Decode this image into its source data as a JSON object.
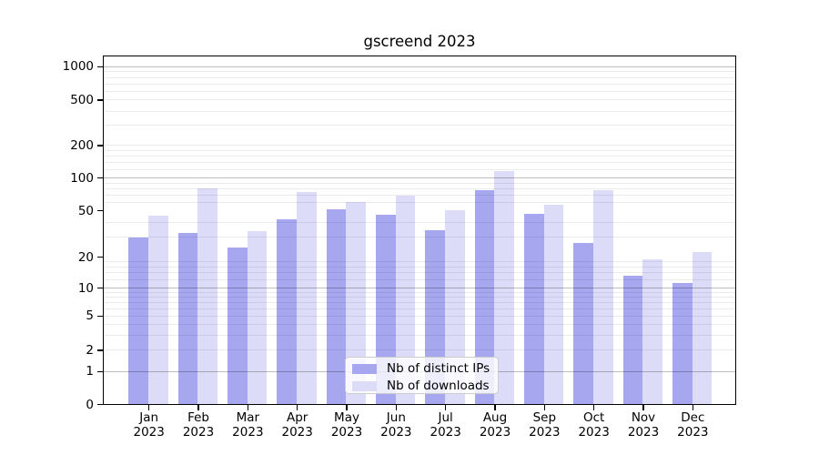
{
  "title": "gscreend 2023",
  "chart_data": {
    "type": "bar",
    "title": "gscreend 2023",
    "categories": [
      "Jan",
      "Feb",
      "Mar",
      "Apr",
      "May",
      "Jun",
      "Jul",
      "Aug",
      "Sep",
      "Oct",
      "Nov",
      "Dec"
    ],
    "x_tick_second_line": "2023",
    "series": [
      {
        "name": "Nb of distinct IPs",
        "color": "#a7a7f0",
        "values": [
          29,
          32,
          24,
          42,
          51,
          46,
          34,
          76,
          47,
          26,
          13,
          11
        ]
      },
      {
        "name": "Nb of downloads",
        "color": "#dcdcf8",
        "values": [
          45,
          80,
          33,
          74,
          60,
          68,
          50,
          114,
          56,
          76,
          19,
          22
        ]
      }
    ],
    "y_axis": {
      "scale": "symlog",
      "major_ticks": [
        0,
        1,
        2,
        5,
        10,
        20,
        50,
        100,
        200,
        500,
        1000
      ],
      "power_of_ten_gridlines": [
        1,
        10,
        100,
        1000
      ],
      "minor_gridlines": [
        2,
        3,
        4,
        5,
        6,
        7,
        8,
        9,
        12,
        14,
        16,
        18,
        30,
        40,
        60,
        70,
        80,
        90,
        120,
        140,
        160,
        180,
        200,
        300,
        400,
        500,
        600,
        700,
        800,
        900
      ]
    },
    "legend": {
      "position": "lower center",
      "items": [
        "Nb of distinct IPs",
        "Nb of downloads"
      ]
    },
    "grid": true,
    "colors": {
      "bar_dark": "#a7a7f0",
      "bar_light": "#dcdcf8",
      "axis": "#000000",
      "grid_major": "#bdbdbd",
      "grid_minor": "#ececec"
    }
  }
}
